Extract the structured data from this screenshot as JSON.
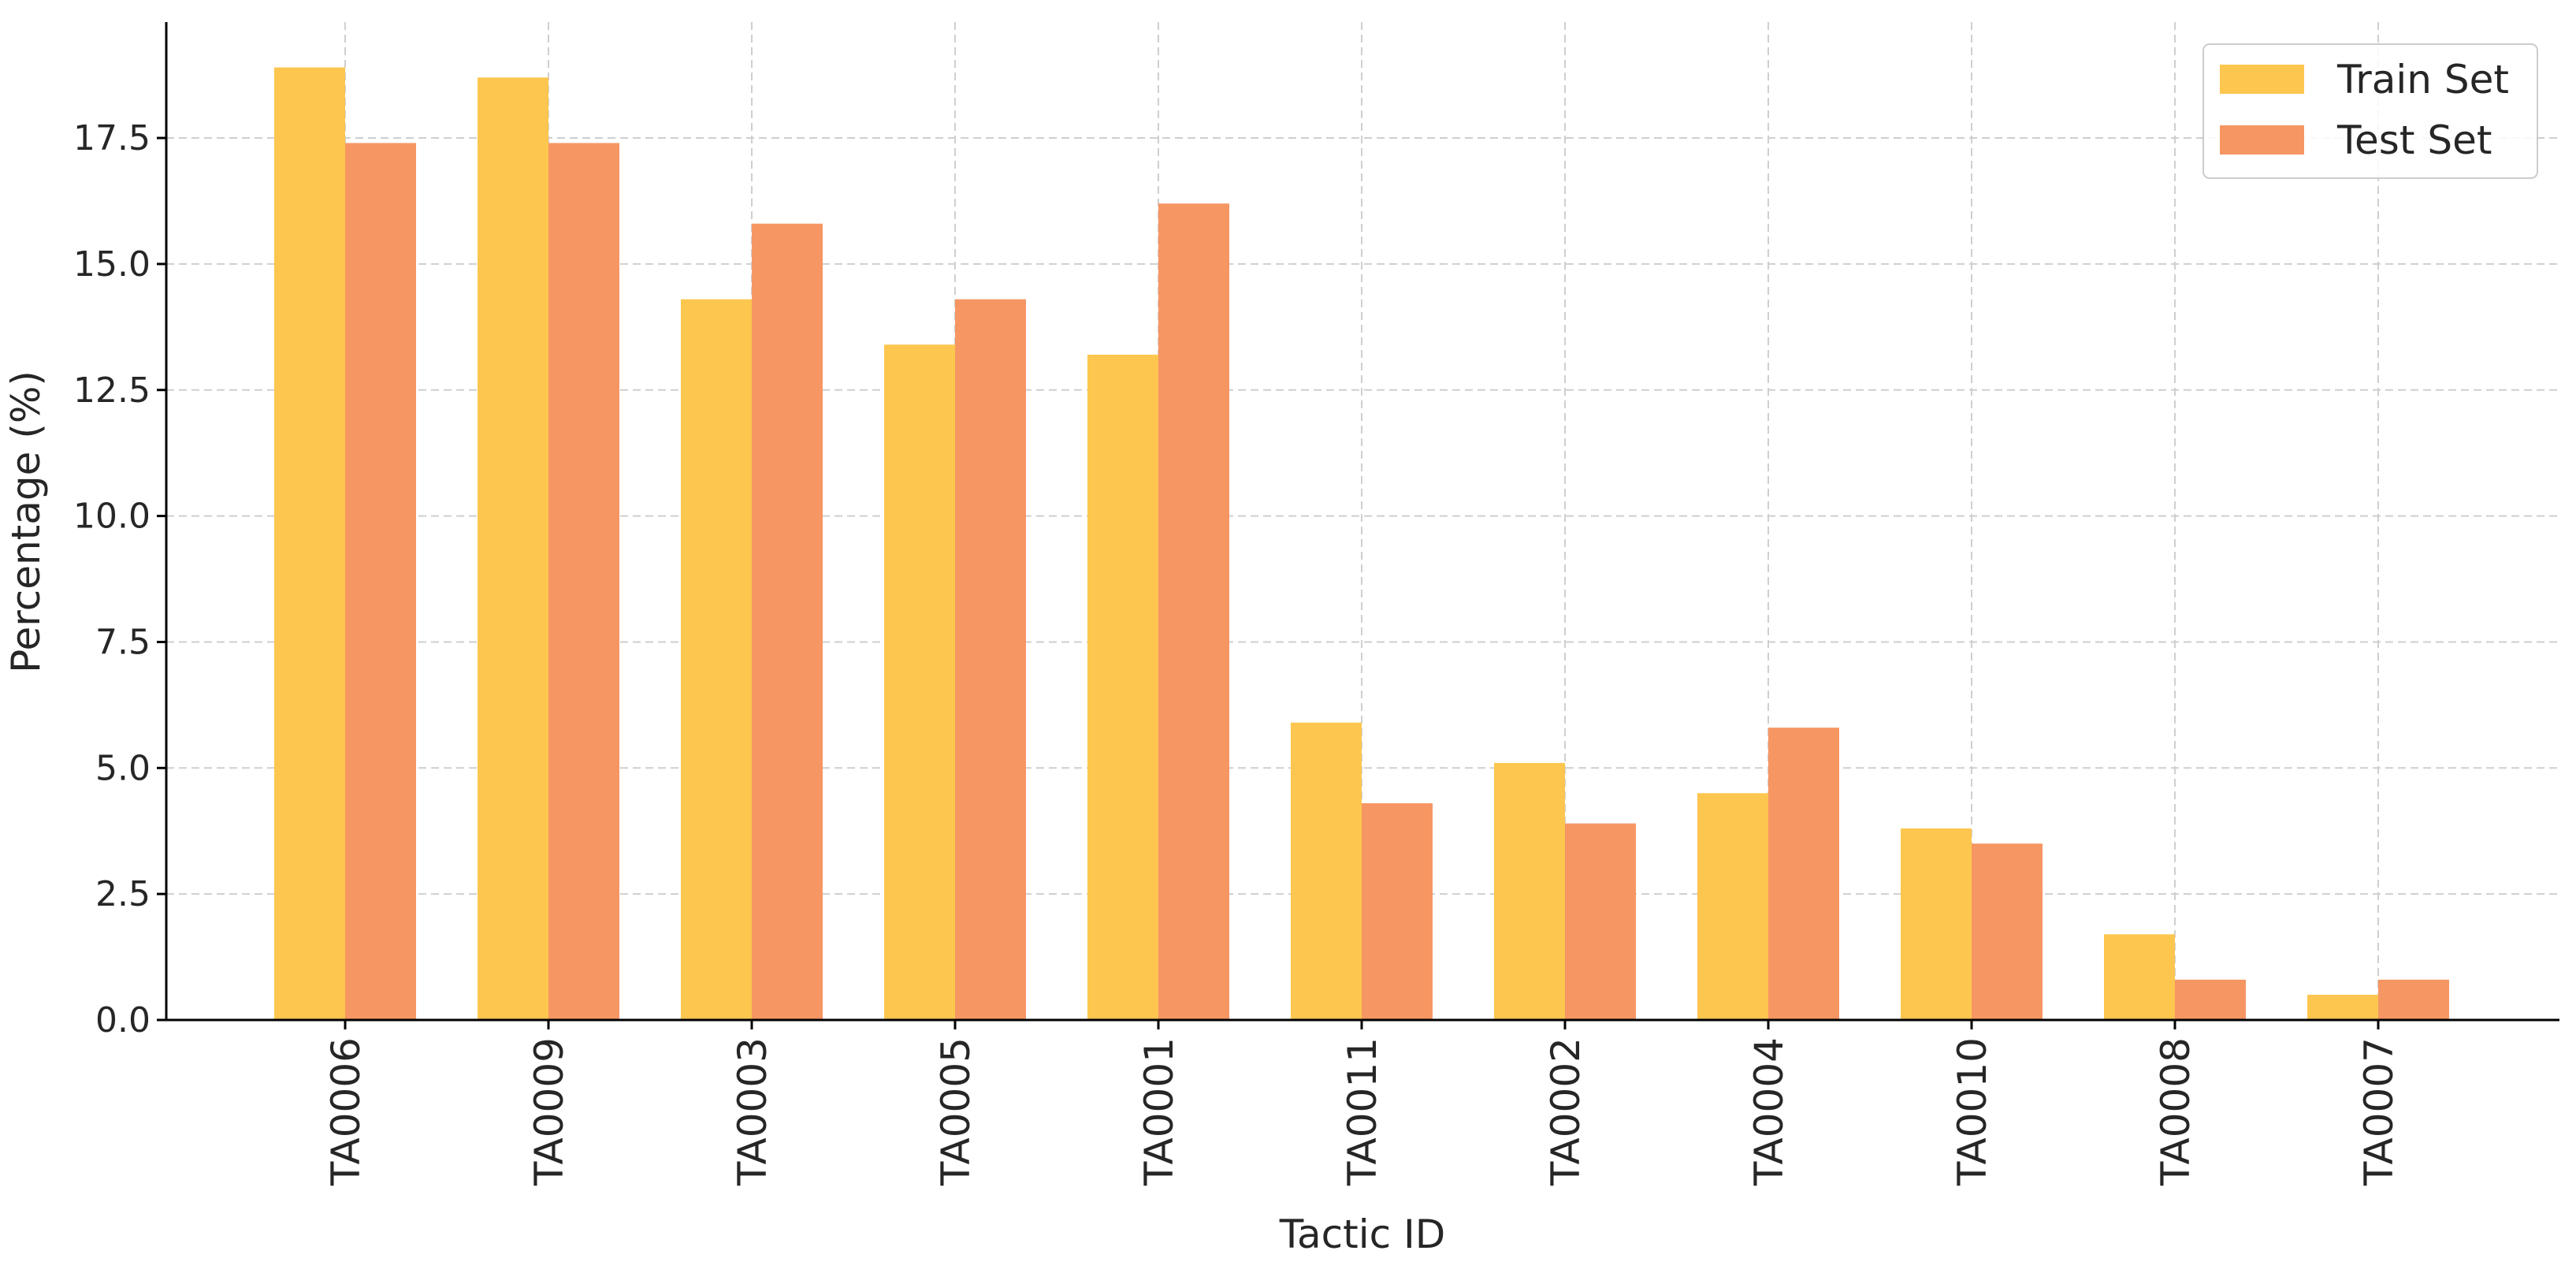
{
  "chart_data": {
    "type": "bar",
    "categories": [
      "TA0006",
      "TA0009",
      "TA0003",
      "TA0005",
      "TA0001",
      "TA0011",
      "TA0002",
      "TA0004",
      "TA0010",
      "TA0008",
      "TA0007"
    ],
    "series": [
      {
        "name": "Train Set",
        "color": "#fdc64f",
        "values": [
          18.9,
          18.7,
          14.3,
          13.4,
          13.2,
          5.9,
          5.1,
          4.5,
          3.8,
          1.7,
          0.5
        ]
      },
      {
        "name": "Test Set",
        "color": "#f69663",
        "values": [
          17.4,
          17.4,
          15.8,
          14.3,
          16.2,
          4.3,
          3.9,
          5.8,
          3.5,
          0.8,
          0.8
        ]
      }
    ],
    "title": "",
    "xlabel": "Tactic ID",
    "ylabel": "Percentage (%)",
    "ylim": [
      0,
      19.8
    ],
    "yticks": [
      "0.0",
      "2.5",
      "5.0",
      "7.5",
      "10.0",
      "12.5",
      "15.0",
      "17.5"
    ],
    "grid": true,
    "legend_position": "top-right"
  }
}
